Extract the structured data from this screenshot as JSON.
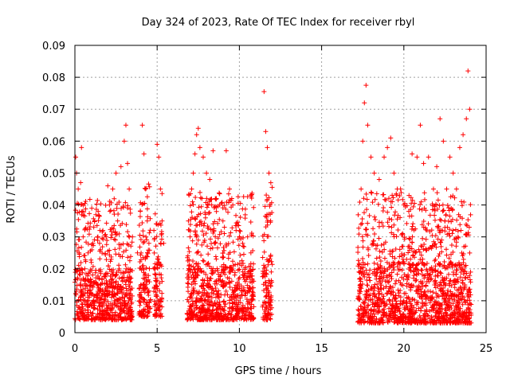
{
  "chart_data": {
    "type": "scatter",
    "title": "Day 324 of 2023, Rate Of TEC Index for receiver rbyl",
    "xlabel": "GPS time / hours",
    "ylabel": "ROTI / TECUs",
    "xlim": [
      0,
      25
    ],
    "ylim": [
      0,
      0.09
    ],
    "xticks": [
      0,
      5,
      10,
      15,
      20,
      25
    ],
    "yticks": [
      0,
      0.01,
      0.02,
      0.03,
      0.04,
      0.05,
      0.06,
      0.07,
      0.08,
      0.09
    ],
    "ytick_labels": [
      "0",
      "0.01",
      "0.02",
      "0.03",
      "0.04",
      "0.05",
      "0.06",
      "0.07",
      "0.08",
      "0.09"
    ],
    "grid": true,
    "marker": "+",
    "color": "#ff0000",
    "series": [
      {
        "name": "ROTI",
        "points": [
          [
            0.05,
            0.055
          ],
          [
            0.1,
            0.05
          ],
          [
            0.2,
            0.045
          ],
          [
            0.25,
            0.025
          ],
          [
            0.3,
            0.02
          ],
          [
            0.35,
            0.047
          ],
          [
            0.4,
            0.058
          ],
          [
            0.45,
            0.038
          ],
          [
            0.5,
            0.03
          ],
          [
            0.6,
            0.02
          ],
          [
            0.8,
            0.025
          ],
          [
            1.0,
            0.022
          ],
          [
            1.2,
            0.035
          ],
          [
            1.4,
            0.03
          ],
          [
            1.5,
            0.028
          ],
          [
            1.7,
            0.032
          ],
          [
            1.9,
            0.03
          ],
          [
            2.0,
            0.046
          ],
          [
            2.1,
            0.04
          ],
          [
            2.3,
            0.045
          ],
          [
            2.5,
            0.05
          ],
          [
            2.6,
            0.035
          ],
          [
            2.8,
            0.052
          ],
          [
            3.0,
            0.06
          ],
          [
            3.1,
            0.065
          ],
          [
            3.2,
            0.053
          ],
          [
            3.3,
            0.045
          ],
          [
            3.5,
            0.03
          ],
          [
            3.8,
            0.025
          ],
          [
            4.1,
            0.065
          ],
          [
            4.2,
            0.056
          ],
          [
            4.3,
            0.045
          ],
          [
            4.4,
            0.035
          ],
          [
            4.5,
            0.028
          ],
          [
            5.0,
            0.059
          ],
          [
            5.1,
            0.055
          ],
          [
            5.2,
            0.045
          ],
          [
            5.3,
            0.035
          ],
          [
            5.4,
            0.028
          ],
          [
            6.9,
            0.035
          ],
          [
            7.0,
            0.03
          ],
          [
            7.1,
            0.045
          ],
          [
            7.2,
            0.05
          ],
          [
            7.3,
            0.056
          ],
          [
            7.4,
            0.062
          ],
          [
            7.5,
            0.064
          ],
          [
            7.6,
            0.058
          ],
          [
            7.8,
            0.055
          ],
          [
            8.0,
            0.05
          ],
          [
            8.2,
            0.048
          ],
          [
            8.4,
            0.057
          ],
          [
            8.6,
            0.042
          ],
          [
            8.8,
            0.04
          ],
          [
            9.0,
            0.035
          ],
          [
            9.2,
            0.057
          ],
          [
            9.4,
            0.045
          ],
          [
            9.6,
            0.04
          ],
          [
            9.8,
            0.032
          ],
          [
            10.0,
            0.03
          ],
          [
            10.2,
            0.028
          ],
          [
            10.5,
            0.03
          ],
          [
            10.7,
            0.025
          ],
          [
            11.5,
            0.0755
          ],
          [
            11.6,
            0.063
          ],
          [
            11.7,
            0.058
          ],
          [
            11.8,
            0.05
          ],
          [
            11.9,
            0.035
          ],
          [
            17.4,
            0.045
          ],
          [
            17.5,
            0.06
          ],
          [
            17.6,
            0.072
          ],
          [
            17.7,
            0.0775
          ],
          [
            17.8,
            0.065
          ],
          [
            18.0,
            0.055
          ],
          [
            18.2,
            0.05
          ],
          [
            18.5,
            0.048
          ],
          [
            18.8,
            0.055
          ],
          [
            19.0,
            0.058
          ],
          [
            19.2,
            0.061
          ],
          [
            19.4,
            0.05
          ],
          [
            19.6,
            0.045
          ],
          [
            19.8,
            0.045
          ],
          [
            20.0,
            0.04
          ],
          [
            20.3,
            0.038
          ],
          [
            20.5,
            0.056
          ],
          [
            20.8,
            0.055
          ],
          [
            21.0,
            0.065
          ],
          [
            21.2,
            0.053
          ],
          [
            21.5,
            0.055
          ],
          [
            21.8,
            0.045
          ],
          [
            22.0,
            0.052
          ],
          [
            22.2,
            0.067
          ],
          [
            22.4,
            0.06
          ],
          [
            22.6,
            0.045
          ],
          [
            22.8,
            0.055
          ],
          [
            23.0,
            0.05
          ],
          [
            23.2,
            0.045
          ],
          [
            23.4,
            0.058
          ],
          [
            23.6,
            0.062
          ],
          [
            23.8,
            0.067
          ],
          [
            23.9,
            0.082
          ],
          [
            24.0,
            0.07
          ]
        ],
        "baseline_clusters": [
          {
            "x_start": 0.0,
            "x_end": 3.5,
            "y_min": 0.004,
            "y_max": 0.02
          },
          {
            "x_start": 3.9,
            "x_end": 4.6,
            "y_min": 0.005,
            "y_max": 0.025
          },
          {
            "x_start": 4.8,
            "x_end": 5.3,
            "y_min": 0.005,
            "y_max": 0.022
          },
          {
            "x_start": 6.8,
            "x_end": 10.9,
            "y_min": 0.004,
            "y_max": 0.022
          },
          {
            "x_start": 11.4,
            "x_end": 12.0,
            "y_min": 0.004,
            "y_max": 0.025
          },
          {
            "x_start": 17.2,
            "x_end": 24.1,
            "y_min": 0.003,
            "y_max": 0.022
          }
        ]
      }
    ]
  }
}
